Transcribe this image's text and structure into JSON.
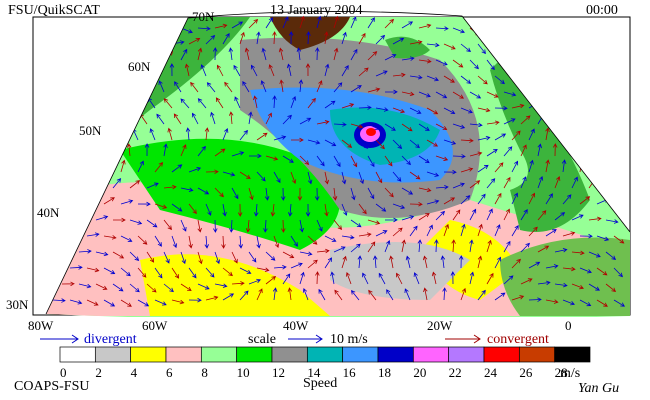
{
  "header": {
    "left": "FSU/QuikSCAT",
    "date": "13 January 2004",
    "time": "00:00"
  },
  "map": {
    "lat_labels": [
      "70N",
      "60N",
      "50N",
      "40N",
      "30N"
    ],
    "lon_labels": [
      "80W",
      "60W",
      "40W",
      "20W",
      "0"
    ]
  },
  "legend": {
    "divergent": "divergent",
    "scale": "scale",
    "scale_value": "10 m/s",
    "convergent": "convergent"
  },
  "colorbar": {
    "ticks": [
      0,
      2,
      4,
      6,
      8,
      10,
      12,
      14,
      16,
      18,
      20,
      22,
      24,
      26,
      28
    ],
    "colors": [
      "#ffffff",
      "#c8c8c8",
      "#ffff00",
      "#ffc0c0",
      "#96ff96",
      "#00e600",
      "#909090",
      "#00b4b4",
      "#3c96ff",
      "#0000c8",
      "#ff64ff",
      "#b478ff",
      "#ff0000",
      "#c83c00",
      "#000000"
    ],
    "unit": "m/s",
    "label": "Speed"
  },
  "footer": {
    "left": "COAPS-FSU",
    "signature": "Yan Gu"
  }
}
